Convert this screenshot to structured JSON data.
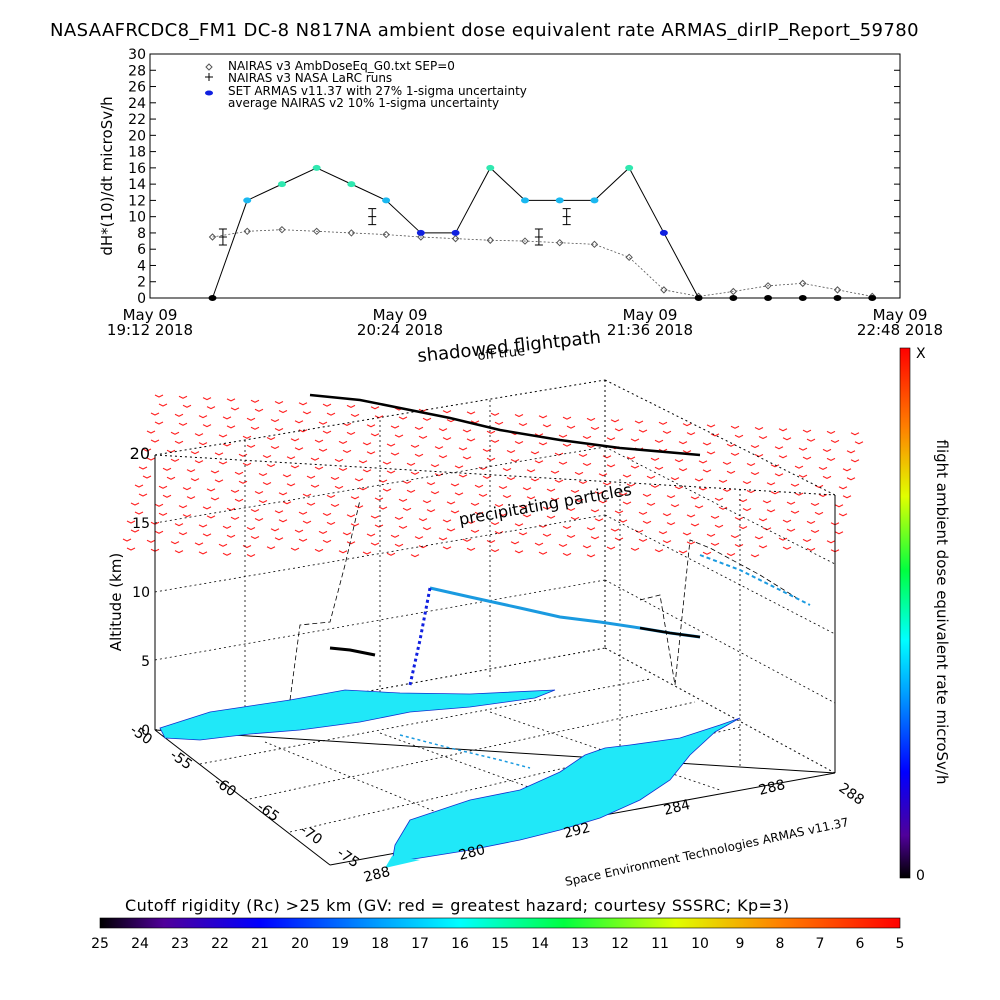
{
  "header": {
    "title": "NASAAFRCDC8_FM1 DC-8    N817NA ambient dose equivalent rate ARMAS_dirIP_Report_59780"
  },
  "legend": {
    "items": [
      {
        "symbol": "diamond",
        "label": "NAIRAS v3 AmbDoseEq_G0.txt SEP=0"
      },
      {
        "symbol": "plus",
        "label": "NAIRAS v3 NASA LaRC runs"
      },
      {
        "symbol": "dot",
        "label": "SET ARMAS v11.37 with 27% 1-sigma uncertainty"
      },
      {
        "symbol": "none",
        "label": "average NAIRAS v2 10% 1-sigma uncertainty"
      }
    ]
  },
  "top_plot": {
    "ylabel": "dH*(10)/dt microSv/h",
    "yticks": [
      "0",
      "2",
      "4",
      "6",
      "8",
      "10",
      "12",
      "14",
      "16",
      "18",
      "20",
      "22",
      "24",
      "26",
      "28",
      "30"
    ],
    "xticks": [
      {
        "date": "May 09",
        "time": "19:12 2018"
      },
      {
        "date": "May 09",
        "time": "20:24 2018"
      },
      {
        "date": "May 09",
        "time": "21:36 2018"
      },
      {
        "date": "May 09",
        "time": "22:48 2018"
      }
    ]
  },
  "chart_data": {
    "type": "scatter",
    "title": "NASAAFRCDC8_FM1 DC-8    N817NA ambient dose equivalent rate ARMAS_dirIP_Report_59780",
    "ylabel": "dH*(10)/dt microSv/h",
    "ylim": [
      0,
      30
    ],
    "x_unit": "UT time, May 09 2018",
    "x": [
      "19:30",
      "19:40",
      "19:50",
      "20:00",
      "20:10",
      "20:20",
      "20:30",
      "20:40",
      "20:50",
      "21:00",
      "21:10",
      "21:20",
      "21:30",
      "21:40",
      "21:50",
      "22:00",
      "22:10",
      "22:20",
      "22:30",
      "22:40"
    ],
    "series": [
      {
        "name": "NAIRAS v3 AmbDoseEq_G0.txt SEP=0",
        "marker": "diamond",
        "values": [
          7.5,
          8.2,
          8.4,
          8.2,
          8.0,
          7.8,
          7.5,
          7.3,
          7.1,
          7.0,
          6.8,
          6.6,
          5.0,
          1.0,
          0.2,
          0.8,
          1.5,
          1.8,
          1.0,
          0.2
        ]
      },
      {
        "name": "SET ARMAS v11.37 with 27% 1-sigma uncertainty",
        "marker": "dot",
        "values": [
          0,
          12,
          14,
          16,
          14,
          12,
          8,
          8,
          16,
          12,
          12,
          12,
          16,
          8,
          0,
          0,
          0,
          0,
          0,
          0
        ]
      },
      {
        "name": "NAIRAS v3 NASA LaRC runs",
        "marker": "plus",
        "x": [
          "19:33",
          "20:16",
          "21:04",
          "21:12"
        ],
        "values": [
          7.5,
          10.0,
          7.5,
          10.0
        ]
      }
    ]
  },
  "lower_plot": {
    "top_note": "shadowed flightpath",
    "top_note2": "off true",
    "mid_note": "precipitating particles",
    "zlabel": "Altitude (km)",
    "zticks": [
      "0",
      "5",
      "10",
      "15",
      "20"
    ],
    "lat_ticks": [
      "-50",
      "-55",
      "-60",
      "-65",
      "-70",
      "-75"
    ],
    "lon_ticks": [
      "288",
      "280",
      "292",
      "284",
      "288",
      "288"
    ],
    "credit": "Space Environment Technologies ARMAS v11.37",
    "colorbar_label": "flight ambient dose equivalent rate microSv/h",
    "colorbar_top": "X",
    "colorbar_bottom": "0"
  },
  "bottom_bar": {
    "label": "Cutoff rigidity (Rc) >25 km (GV: red = greatest hazard; courtesy SSSRC; Kp=3)",
    "ticks": [
      "25",
      "24",
      "23",
      "22",
      "21",
      "20",
      "19",
      "18",
      "17",
      "16",
      "15",
      "14",
      "13",
      "12",
      "11",
      "10",
      "9",
      "8",
      "7",
      "6",
      "5"
    ]
  },
  "colors": {
    "diamond": "#555555",
    "armas_high": "#30e8b0",
    "armas_mid": "#1ab8f0",
    "armas_low": "#1020e0",
    "red_arrows": "#ff2020",
    "land": "#20f0f8"
  }
}
